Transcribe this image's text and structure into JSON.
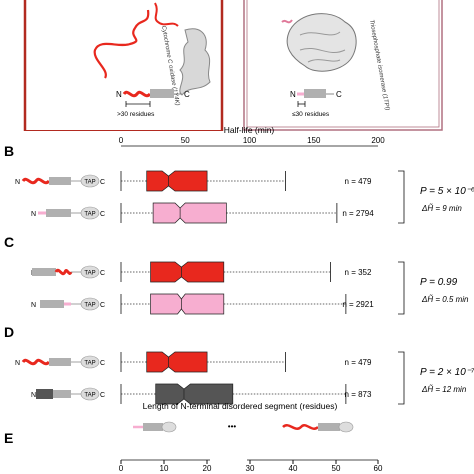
{
  "top_panels": {
    "left_protein": "Cytochrome C oxidase (1Y4K)",
    "right_protein": "Triosephosphate isomerase (1TPI)",
    "left_scale_label": ">30 residues",
    "right_scale_label": "≤30 residues",
    "terminal_n": "N",
    "terminal_c": "C"
  },
  "tap_label": "TAP",
  "half_life_axis": {
    "title": "Half-life (min)",
    "ticks": [
      "0",
      "50",
      "100",
      "150",
      "200"
    ],
    "range": [
      0,
      200
    ]
  },
  "panels": [
    {
      "letter": "B",
      "p_value": "P = 5 × 10⁻⁶",
      "delta": "ΔH̃ = 9 min",
      "rows": [
        {
          "n": "n = 479",
          "color": "#e8281e",
          "construct": "disordered-n",
          "wmin": 0,
          "q1": 20,
          "median": 37,
          "q3": 67,
          "wmax": 128,
          "notch": [
            32,
            42
          ]
        },
        {
          "n": "n = 2794",
          "color": "#f7aed0",
          "construct": "short-n",
          "wmin": 0,
          "q1": 25,
          "median": 46,
          "q3": 82,
          "wmax": 168,
          "notch": [
            42,
            50
          ]
        }
      ]
    },
    {
      "letter": "C",
      "p_value": "P = 0.99",
      "delta": "ΔH̃ = 0.5 min",
      "rows": [
        {
          "n": "n = 352",
          "color": "#e8281e",
          "construct": "disordered-c",
          "wmin": 0,
          "q1": 23,
          "median": 47,
          "q3": 80,
          "wmax": 163,
          "notch": [
            42,
            52
          ]
        },
        {
          "n": "n = 2921",
          "color": "#f7aed0",
          "construct": "short-c",
          "wmin": 0,
          "q1": 23,
          "median": 47,
          "q3": 80,
          "wmax": 175,
          "notch": [
            44,
            50
          ]
        }
      ]
    },
    {
      "letter": "D",
      "p_value": "P = 2 × 10⁻⁷",
      "delta": "ΔH̃ = 12 min",
      "rows": [
        {
          "n": "n = 479",
          "color": "#e8281e",
          "construct": "disordered-n",
          "wmin": 0,
          "q1": 20,
          "median": 37,
          "q3": 67,
          "wmax": 128,
          "notch": [
            32,
            42
          ]
        },
        {
          "n": "n = 873",
          "color": "#555555",
          "construct": "ordered-n",
          "wmin": 0,
          "q1": 27,
          "median": 49,
          "q3": 87,
          "wmax": 175,
          "notch": [
            44,
            54
          ]
        }
      ]
    }
  ],
  "panel_e": {
    "letter": "E",
    "title": "Length of N-terminal disordered segment (residues)",
    "ticks_left": [
      "0",
      "10",
      "20"
    ],
    "ellipsis": "•••",
    "ticks_right": [
      "30",
      "40",
      "50",
      "60"
    ]
  },
  "colors": {
    "disordered": "#e8281e",
    "short": "#f7aed0",
    "ordered": "#555555",
    "frame_left": "#b22a20",
    "frame_right": "#b07080",
    "gray_domain": "#b0b0b0"
  }
}
